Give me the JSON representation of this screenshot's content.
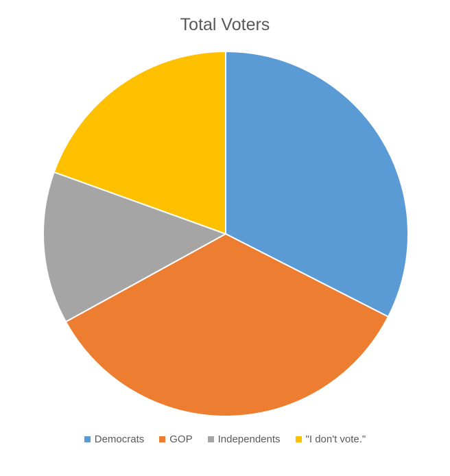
{
  "chart_data": {
    "type": "pie",
    "title": "Total Voters",
    "start_angle_deg": 0,
    "direction": "clockwise",
    "legend_position": "bottom",
    "slices": [
      {
        "label": "Democrats",
        "value": 32.5,
        "color": "#5B9BD5"
      },
      {
        "label": "GOP",
        "value": 34.5,
        "color": "#ED7D31"
      },
      {
        "label": "Independents",
        "value": 13.5,
        "color": "#A5A5A5"
      },
      {
        "label": "\"I don't vote.\"",
        "value": 19.5,
        "color": "#FFC000"
      }
    ]
  }
}
